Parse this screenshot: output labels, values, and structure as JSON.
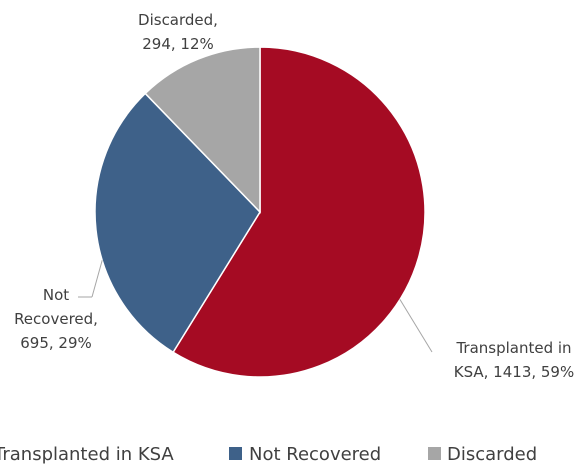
{
  "chart_data": {
    "type": "pie",
    "title": "",
    "slices": [
      {
        "name": "Transplanted in KSA",
        "value": 1413,
        "percent": "59%",
        "color": "#A50B23",
        "label_lines": [
          "Transplanted in",
          "KSA, 1413, 59%"
        ]
      },
      {
        "name": "Not Recovered",
        "value": 695,
        "percent": "29%",
        "color": "#3E6189",
        "label_lines": [
          "Not",
          "Recovered,",
          "695, 29%"
        ]
      },
      {
        "name": "Discarded",
        "value": 294,
        "percent": "12%",
        "color": "#A6A6A6",
        "label_lines": [
          "Discarded,",
          "294, 12%"
        ]
      }
    ],
    "legend_position": "bottom"
  }
}
